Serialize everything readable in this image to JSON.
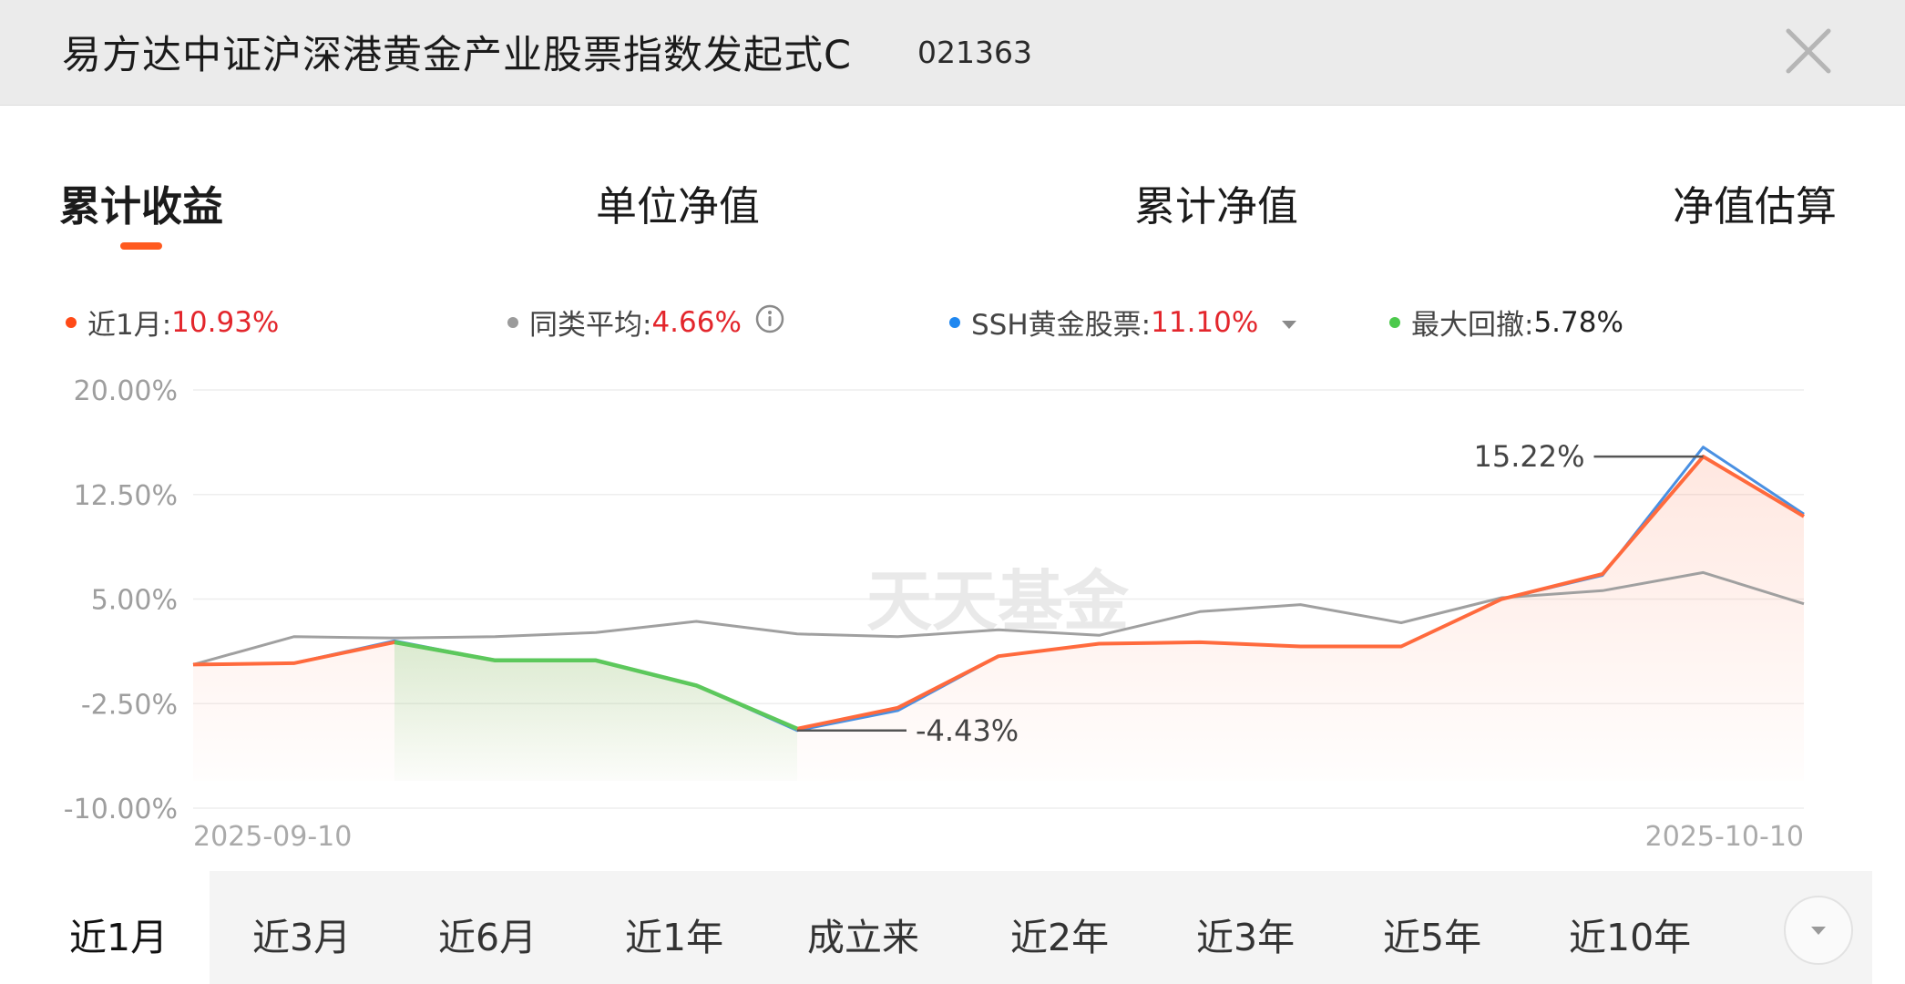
{
  "header": {
    "title": "易方达中证沪深港黄金产业股票指数发起式C",
    "code": "021363"
  },
  "tabs": [
    {
      "label": "累计收益",
      "active": true
    },
    {
      "label": "单位净值",
      "active": false
    },
    {
      "label": "累计净值",
      "active": false
    },
    {
      "label": "净值估算",
      "active": false
    }
  ],
  "legend": [
    {
      "label": "近1月:",
      "value": "10.93%",
      "color": "#ff4a17",
      "value_color": "#e3262c"
    },
    {
      "label": "同类平均:",
      "value": "4.66%",
      "color": "#9b9b9b",
      "value_color": "#e3262c",
      "icon": "info-icon"
    },
    {
      "label": "SSH黄金股票:",
      "value": "11.10%",
      "color": "#1f87f0",
      "value_color": "#e3262c",
      "icon": "caret-down-icon"
    },
    {
      "label": "最大回撤:",
      "value": "5.78%",
      "color": "#4cc94c",
      "value_color": "#222222"
    }
  ],
  "chart_data": {
    "type": "line",
    "ylim": [
      -10,
      20
    ],
    "yticks": [
      "20.00%",
      "12.50%",
      "5.00%",
      "-2.50%",
      "-10.00%"
    ],
    "ytick_values": [
      20,
      12.5,
      5,
      -2.5,
      -10
    ],
    "x_start_label": "2025-09-10",
    "x_end_label": "2025-10-10",
    "watermark": "天天基金",
    "series": [
      {
        "key": "fund",
        "color": "#ff6a3d",
        "values": [
          0.3,
          0.4,
          1.9,
          0.6,
          0.6,
          -1.2,
          -4.3,
          -2.8,
          0.9,
          1.8,
          1.9,
          1.6,
          1.6,
          5.0,
          6.8,
          15.22,
          10.93
        ]
      },
      {
        "key": "benchmark",
        "color": "#4a90e2",
        "values": [
          0.3,
          0.4,
          2.0,
          0.6,
          0.6,
          -1.2,
          -4.43,
          -3.0,
          0.9,
          1.8,
          1.9,
          1.6,
          1.6,
          5.0,
          6.7,
          15.9,
          11.1
        ]
      },
      {
        "key": "peer_avg",
        "color": "#a0a0a0",
        "values": [
          0.3,
          2.3,
          2.2,
          2.3,
          2.6,
          3.4,
          2.5,
          2.3,
          2.8,
          2.4,
          4.1,
          4.6,
          3.3,
          5.1,
          5.6,
          6.9,
          4.66
        ]
      }
    ],
    "drawdown": {
      "start_index": 2,
      "end_index": 6,
      "color": "#5cc85c",
      "value": "5.78%"
    },
    "annotations": [
      {
        "text": "15.22%",
        "index": 15,
        "value": 15.22
      },
      {
        "text": "-4.43%",
        "index": 6,
        "value": -4.43
      }
    ]
  },
  "periods": [
    {
      "label": "近1月",
      "active": true
    },
    {
      "label": "近3月",
      "active": false
    },
    {
      "label": "近6月",
      "active": false
    },
    {
      "label": "近1年",
      "active": false
    },
    {
      "label": "成立来",
      "active": false
    },
    {
      "label": "近2年",
      "active": false
    },
    {
      "label": "近3年",
      "active": false
    },
    {
      "label": "近5年",
      "active": false
    },
    {
      "label": "近10年",
      "active": false
    }
  ]
}
